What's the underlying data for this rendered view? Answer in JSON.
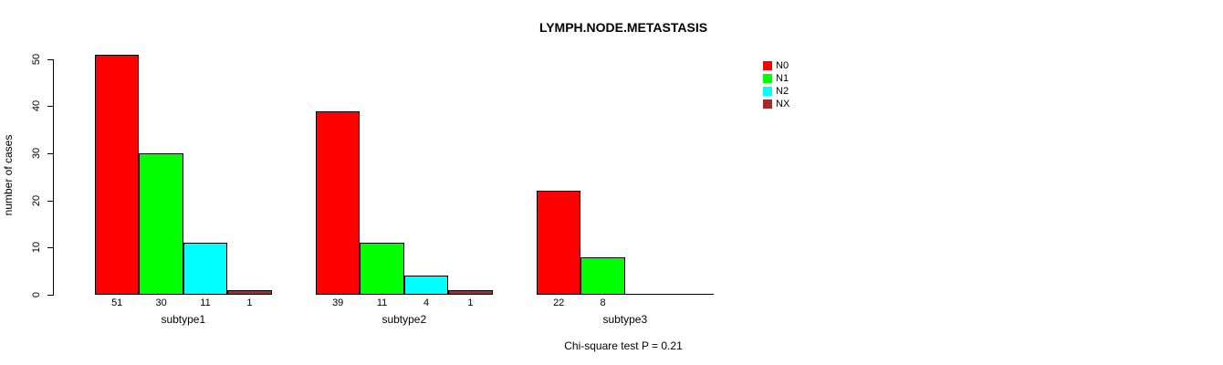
{
  "chart_data": {
    "type": "bar",
    "title": "LYMPH.NODE.METASTASIS",
    "xlabel": "",
    "ylabel": "number of cases",
    "ylim": [
      0,
      50
    ],
    "yticks": [
      0,
      10,
      20,
      30,
      40,
      50
    ],
    "grid": false,
    "legend_position": "right-outside",
    "categories": [
      "subtype1",
      "subtype2",
      "subtype3"
    ],
    "series": [
      {
        "name": "N0",
        "color": "#FF0000",
        "values": [
          51,
          39,
          22
        ]
      },
      {
        "name": "N1",
        "color": "#00FF00",
        "values": [
          30,
          11,
          8
        ]
      },
      {
        "name": "N2",
        "color": "#00FFFF",
        "values": [
          11,
          4,
          0
        ]
      },
      {
        "name": "NX",
        "color": "#A52A2A",
        "values": [
          1,
          1,
          0
        ]
      }
    ],
    "bar_value_labels": [
      [
        "51",
        "30",
        "11",
        "1"
      ],
      [
        "39",
        "11",
        "4",
        "1"
      ],
      [
        "22",
        "8",
        "",
        ""
      ]
    ],
    "annotation": "Chi-square test P = 0.21"
  }
}
